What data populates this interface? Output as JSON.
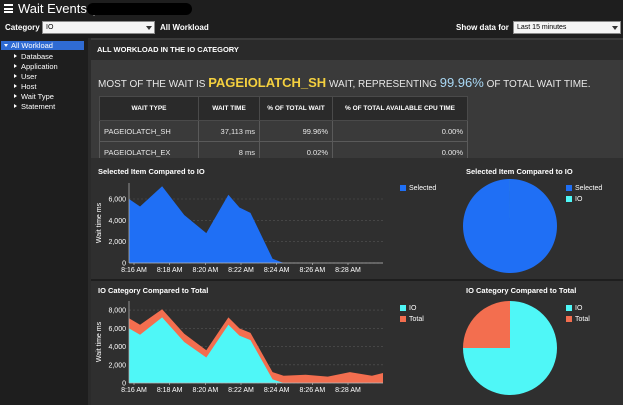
{
  "window": {
    "title": "Wait Events ("
  },
  "toolbar": {
    "category_label": "Category",
    "category_value": "IO",
    "scope_label": "All Workload",
    "show_data_label": "Show data for",
    "show_data_value": "Last 15 minutes"
  },
  "sidebar": {
    "root": "All Workload",
    "items": [
      "Database",
      "Application",
      "User",
      "Host",
      "Wait Type",
      "Statement"
    ]
  },
  "summary": {
    "header": "ALL WORKLOAD IN THE IO CATEGORY",
    "prefix": "MOST OF THE WAIT IS ",
    "wait_type": "PAGEIOLATCH_SH",
    "middle": " WAIT, REPRESENTING ",
    "percent": "99.96%",
    "suffix": " OF TOTAL WAIT TIME."
  },
  "wait_table": {
    "columns": [
      "WAIT TYPE",
      "WAIT TIME",
      "% OF TOTAL WAIT",
      "% OF TOTAL AVAILABLE CPU TIME"
    ],
    "rows": [
      [
        "PAGEIOLATCH_SH",
        "37,113 ms",
        "99.96%",
        "0.00%"
      ],
      [
        "PAGEIOLATCH_EX",
        "8 ms",
        "0.02%",
        "0.00%"
      ]
    ]
  },
  "panels": {
    "selected_vs_io": {
      "title": "Selected Item Compared to IO",
      "legend": [
        "Selected"
      ]
    },
    "selected_vs_io_pie": {
      "title": "Selected Item Compared to IO",
      "legend": [
        "Selected",
        "IO"
      ]
    },
    "io_vs_total": {
      "title": "IO Category Compared to Total",
      "legend": [
        "IO",
        "Total"
      ]
    },
    "io_vs_total_pie": {
      "title": "IO Category Compared to Total",
      "legend": [
        "IO",
        "Total"
      ]
    }
  },
  "colors": {
    "selected": "#1f6ff5",
    "io": "#4ff7f7",
    "total": "#f36e4f",
    "accent_wait": "#f4d03f",
    "accent_pct": "#a9d8f5"
  },
  "chart_data": [
    {
      "type": "area",
      "title": "Selected Item Compared to IO",
      "ylabel": "Wait time ms",
      "ylim": [
        0,
        7500
      ],
      "yticks": [
        0,
        2000,
        4000,
        6000
      ],
      "xticks": [
        "8:16 AM",
        "8:18 AM",
        "8:20 AM",
        "8:22 AM",
        "8:24 AM",
        "8:26 AM",
        "8:28 AM"
      ],
      "xlim": [
        8.25,
        8.48
      ],
      "series": [
        {
          "name": "Selected",
          "x": [
            8.25,
            8.26,
            8.28,
            8.3,
            8.32,
            8.34,
            8.35,
            8.36,
            8.38,
            8.39,
            8.41,
            8.43,
            8.45,
            8.47,
            8.48
          ],
          "values": [
            6000,
            5300,
            7200,
            4500,
            2800,
            6400,
            5200,
            4700,
            400,
            0,
            0,
            0,
            0,
            0,
            0
          ]
        }
      ]
    },
    {
      "type": "pie",
      "title": "Selected Item Compared to IO",
      "categories": [
        "Selected",
        "IO"
      ],
      "values": [
        99.98,
        0.02
      ]
    },
    {
      "type": "area",
      "title": "IO Category Compared to Total",
      "ylabel": "Wait time ms",
      "ylim": [
        0,
        9000
      ],
      "yticks": [
        0,
        2000,
        4000,
        6000,
        8000
      ],
      "xticks": [
        "8:16 AM",
        "8:18 AM",
        "8:20 AM",
        "8:22 AM",
        "8:24 AM",
        "8:26 AM",
        "8:28 AM"
      ],
      "xlim": [
        8.25,
        8.48
      ],
      "series": [
        {
          "name": "IO",
          "x": [
            8.25,
            8.26,
            8.28,
            8.3,
            8.32,
            8.34,
            8.35,
            8.36,
            8.38,
            8.39,
            8.41,
            8.43,
            8.45,
            8.47,
            8.48
          ],
          "values": [
            6000,
            5300,
            7200,
            4500,
            2800,
            6400,
            5200,
            4700,
            400,
            0,
            0,
            0,
            0,
            0,
            0
          ]
        },
        {
          "name": "Total",
          "x": [
            8.25,
            8.26,
            8.28,
            8.3,
            8.32,
            8.34,
            8.35,
            8.36,
            8.38,
            8.39,
            8.41,
            8.43,
            8.45,
            8.47,
            8.48
          ],
          "values": [
            7100,
            6400,
            8100,
            5400,
            3600,
            7200,
            6000,
            5500,
            1200,
            800,
            900,
            700,
            1200,
            800,
            1100
          ]
        }
      ]
    },
    {
      "type": "pie",
      "title": "IO Category Compared to Total",
      "categories": [
        "IO",
        "Total"
      ],
      "values": [
        75,
        25
      ]
    }
  ]
}
